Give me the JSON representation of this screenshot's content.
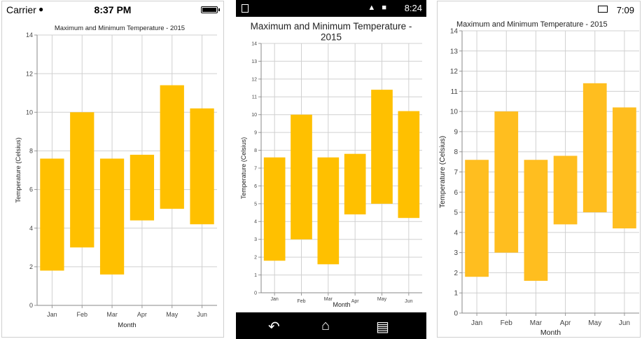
{
  "ios_status": {
    "carrier": "Carrier",
    "time": "8:37 PM"
  },
  "android_status": {
    "time": "8:24"
  },
  "win_status": {
    "time": "7:09"
  },
  "chart_data": {
    "type": "bar",
    "title": "Maximum and Minimum Temperature - 2015",
    "xlabel": "Month",
    "ylabel": "Temperature (Celsius)",
    "categories": [
      "Jan",
      "Feb",
      "Mar",
      "Apr",
      "May",
      "Jun"
    ],
    "low": [
      1.8,
      3,
      1.6,
      4.4,
      5,
      4.2
    ],
    "high": [
      7.6,
      10,
      7.6,
      7.8,
      11.4,
      10.2
    ],
    "ylim": [
      0,
      14
    ],
    "grid": true,
    "color": "#FFC000"
  }
}
